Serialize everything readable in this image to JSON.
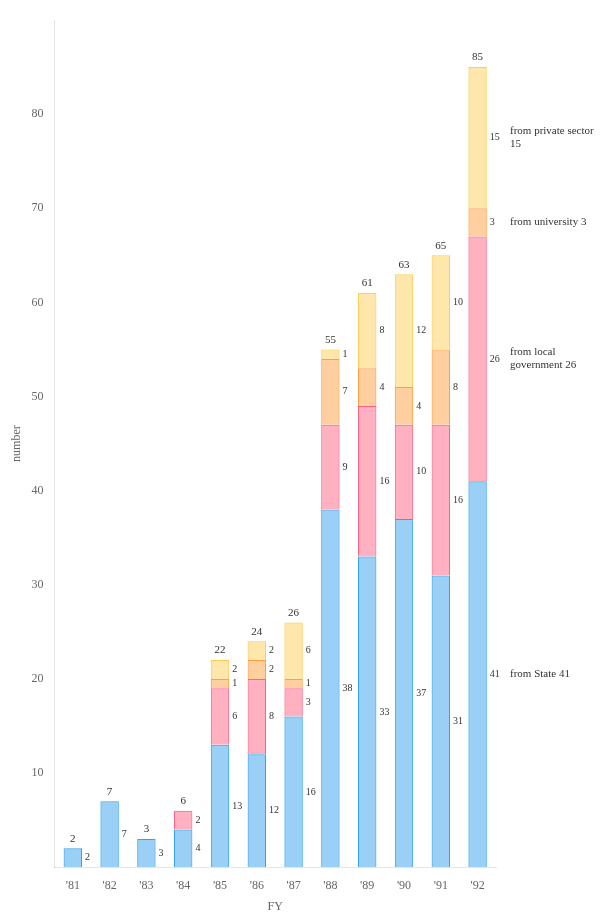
{
  "chart_data": {
    "type": "bar",
    "stacked": true,
    "categories": [
      "'81",
      "'82",
      "'83",
      "'84",
      "'85",
      "'86",
      "'87",
      "'88",
      "'89",
      "'90",
      "'91",
      "'92"
    ],
    "series": [
      {
        "values": [
          2,
          7,
          3,
          4,
          13,
          12,
          16,
          38,
          33,
          37,
          31,
          41
        ]
      },
      {
        "values": [
          0,
          0,
          0,
          2,
          6,
          8,
          3,
          9,
          16,
          10,
          16,
          26
        ]
      },
      {
        "values": [
          0,
          0,
          0,
          0,
          1,
          2,
          1,
          7,
          4,
          4,
          8,
          3
        ]
      },
      {
        "values": [
          0,
          0,
          0,
          0,
          2,
          2,
          6,
          1,
          8,
          12,
          10,
          15
        ]
      }
    ],
    "totals": [
      2,
      7,
      3,
      6,
      22,
      24,
      26,
      55,
      61,
      63,
      65,
      85
    ],
    "annotations": [
      "from State 41",
      "from local government 26",
      "from university 3",
      "from private sector 15"
    ],
    "data_labels": true,
    "ylabel": "number",
    "xlabel": "FY",
    "ylim": [
      0,
      90
    ],
    "yticks": [
      10,
      20,
      30,
      40,
      50,
      60,
      70,
      80
    ],
    "grid": false
  }
}
